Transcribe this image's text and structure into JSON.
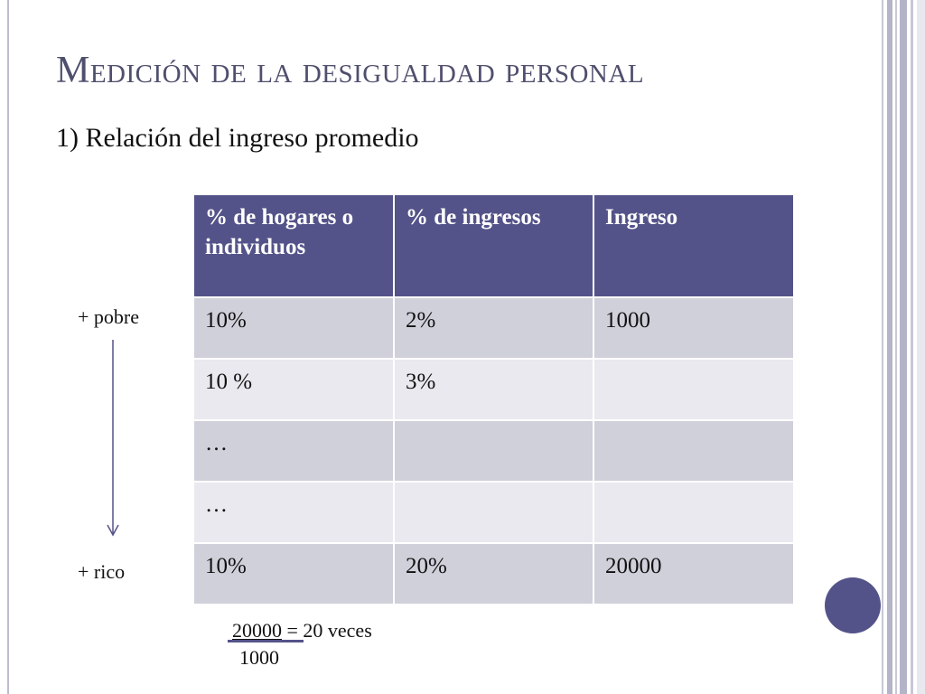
{
  "slide": {
    "title": "Medición de la desigualdad personal",
    "subtitle": "1) Relación del ingreso promedio"
  },
  "table": {
    "headers": [
      "% de hogares o individuos",
      "% de ingresos",
      "Ingreso"
    ],
    "rows": [
      [
        "10%",
        "2%",
        "1000"
      ],
      [
        "10 %",
        "3%",
        ""
      ],
      [
        "…",
        "",
        ""
      ],
      [
        "…",
        "",
        ""
      ],
      [
        "10%",
        "20%",
        "20000"
      ]
    ]
  },
  "side_labels": {
    "top": "+ pobre",
    "bottom": "+ rico"
  },
  "formula": {
    "numerator": "20000",
    "result": " = 20 veces",
    "denominator": "1000"
  },
  "colors": {
    "accent": "#545389",
    "row_dark": "#d0d0db",
    "row_light": "#e9e9ef",
    "title": "#4f4f6e"
  }
}
